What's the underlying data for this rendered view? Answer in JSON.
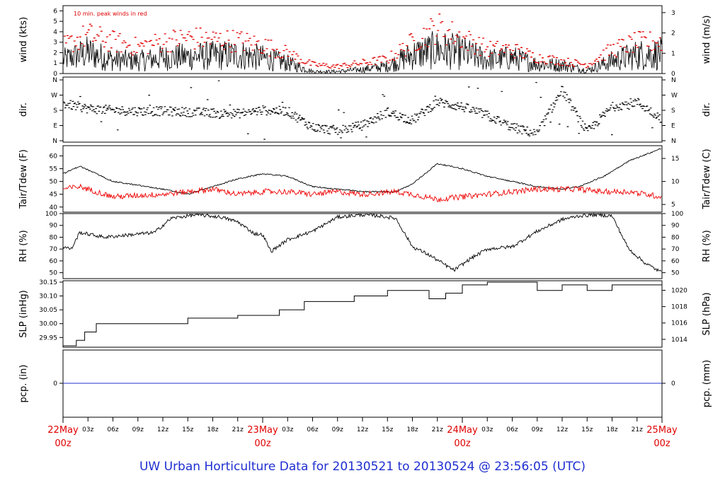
{
  "footer": {
    "title_prefix": "UW Urban Horticulture Data for",
    "start": "20130521",
    "sep": "to",
    "end": "20130524 @ 23:56:05",
    "tz": "(UTC)"
  },
  "colors": {
    "axis": "#000000",
    "series": "#000000",
    "peak": "#e00000",
    "dew": "#ee0000",
    "precip": "#2030d0",
    "day": "#e00000",
    "footer": "#1f2fd0"
  },
  "chart_data": [
    {
      "type": "line",
      "panel": "wind",
      "ylabel_left": "wind (kts)",
      "ylabel_right": "wind (m/s)",
      "annotation": "10 min. peak winds in red",
      "ylim": [
        0,
        6.5
      ],
      "yticks_left": [
        "0",
        "1",
        "2",
        "3",
        "4",
        "5",
        "6"
      ],
      "yticks_right": [
        "0",
        "1",
        "2",
        "3"
      ],
      "series": [
        {
          "name": "wind",
          "x_hours": [
            0,
            3,
            6,
            9,
            12,
            15,
            18,
            21,
            24,
            27,
            30,
            33,
            36,
            39,
            42,
            45,
            48,
            51,
            54,
            57,
            60,
            63,
            66,
            69,
            72
          ],
          "values": [
            1.3,
            2.0,
            1.3,
            1.2,
            1.5,
            1.6,
            1.7,
            1.8,
            1.5,
            1.0,
            0.2,
            0.2,
            0.4,
            0.7,
            1.8,
            2.3,
            2.0,
            1.3,
            1.5,
            0.9,
            0.8,
            0.3,
            1.2,
            1.8,
            1.9
          ]
        },
        {
          "name": "peak",
          "x_hours": [
            0,
            3,
            6,
            9,
            12,
            15,
            18,
            21,
            24,
            27,
            30,
            33,
            36,
            39,
            42,
            45,
            48,
            51,
            54,
            57,
            60,
            63,
            66,
            69,
            72
          ],
          "values": [
            3.1,
            4.3,
            3.6,
            3.0,
            3.6,
            4.0,
            3.8,
            3.7,
            3.2,
            2.3,
            1.0,
            0.8,
            1.2,
            1.6,
            3.5,
            5.2,
            4.0,
            2.8,
            2.7,
            1.8,
            1.4,
            1.0,
            2.7,
            3.5,
            3.6
          ]
        }
      ]
    },
    {
      "type": "scatter",
      "panel": "direction",
      "ylabel_left": "dir.",
      "ylabel_right": "dir.",
      "yticks": [
        "N",
        "W",
        "S",
        "E",
        "N"
      ],
      "series": [
        {
          "name": "dir",
          "x_hours": [
            0,
            3,
            6,
            9,
            12,
            15,
            18,
            21,
            24,
            27,
            30,
            33,
            36,
            39,
            42,
            45,
            48,
            51,
            54,
            57,
            60,
            63,
            66,
            69,
            72
          ],
          "values_deg": [
            220,
            190,
            180,
            175,
            175,
            170,
            165,
            160,
            180,
            175,
            80,
            60,
            90,
            170,
            120,
            230,
            200,
            150,
            80,
            40,
            300,
            50,
            200,
            230,
            130
          ]
        }
      ]
    },
    {
      "type": "line",
      "panel": "temperature",
      "ylabel_left": "Tair/Tdew (F)",
      "ylabel_right": "Tair/Tdew (C)",
      "ylim": [
        38,
        64
      ],
      "yticks_left": [
        "40",
        "45",
        "50",
        "55",
        "60"
      ],
      "yticks_right": [
        "5",
        "10",
        "15"
      ],
      "series": [
        {
          "name": "Tair",
          "x_hours": [
            0,
            2,
            6,
            12,
            15,
            18,
            21,
            24,
            27,
            30,
            33,
            36,
            40,
            42,
            45,
            48,
            51,
            54,
            57,
            60,
            62,
            65,
            68,
            72
          ],
          "values": [
            53,
            56,
            50,
            47,
            45,
            48,
            51,
            53,
            52,
            48,
            47,
            46,
            46,
            49,
            57,
            55,
            52,
            50,
            48,
            47,
            48,
            52,
            58,
            63
          ]
        },
        {
          "name": "Tdew",
          "x_hours": [
            0,
            2,
            6,
            12,
            15,
            18,
            21,
            24,
            27,
            30,
            33,
            36,
            40,
            42,
            45,
            48,
            51,
            54,
            57,
            60,
            62,
            65,
            68,
            72
          ],
          "values": [
            47,
            48,
            44,
            45,
            46,
            47,
            45,
            46,
            46,
            45,
            46,
            45,
            46,
            45,
            43,
            44,
            45,
            46,
            47,
            47,
            47,
            46,
            46,
            44
          ]
        }
      ]
    },
    {
      "type": "line",
      "panel": "humidity",
      "ylabel_left": "RH (%)",
      "ylabel_right": "RH (%)",
      "ylim": [
        45,
        100
      ],
      "yticks_left": [
        "50",
        "60",
        "70",
        "80",
        "90",
        "100"
      ],
      "yticks_right": [
        "50",
        "60",
        "70",
        "80",
        "90",
        "100"
      ],
      "series": [
        {
          "name": "RH",
          "x_hours": [
            0,
            1,
            2,
            5,
            8,
            11,
            13,
            16,
            19,
            21,
            23,
            24,
            25,
            27,
            30,
            33,
            36,
            38,
            39,
            40,
            42,
            44,
            47,
            49,
            51,
            54,
            57,
            60,
            62,
            64,
            66,
            68,
            70,
            72
          ],
          "values": [
            72,
            70,
            84,
            80,
            82,
            84,
            96,
            99,
            97,
            93,
            83,
            82,
            68,
            78,
            85,
            97,
            99,
            98,
            97,
            96,
            72,
            65,
            52,
            62,
            70,
            72,
            85,
            95,
            98,
            99,
            98,
            70,
            58,
            50
          ]
        }
      ]
    },
    {
      "type": "line",
      "panel": "pressure",
      "ylabel_left": "SLP (inHg)",
      "ylabel_right": "SLP (hPa)",
      "ylim": [
        29.915,
        30.155
      ],
      "yticks_left": [
        "29.95",
        "30.00",
        "30.05",
        "30.10",
        "30.15"
      ],
      "yticks_right": [
        "1014",
        "1016",
        "1018",
        "1020"
      ],
      "series": [
        {
          "name": "SLP",
          "x_hours": [
            0,
            1.6,
            2.6,
            4,
            10.5,
            15,
            21,
            26,
            29,
            35,
            39,
            44,
            46,
            48,
            51,
            57,
            60,
            63,
            66,
            72
          ],
          "values": [
            29.92,
            29.94,
            29.97,
            30.0,
            30.0,
            30.02,
            30.03,
            30.05,
            30.08,
            30.1,
            30.12,
            30.09,
            30.11,
            30.14,
            30.15,
            30.12,
            30.14,
            30.12,
            30.14,
            30.12
          ]
        }
      ]
    },
    {
      "type": "line",
      "panel": "precip",
      "ylabel_left": "pcp. (in)",
      "ylabel_right": "pcp. (mm)",
      "yticks_left": [
        "0"
      ],
      "yticks_right": [
        "0"
      ],
      "series": [
        {
          "name": "pcp",
          "x_hours": [
            0,
            72
          ],
          "values": [
            0,
            0
          ]
        }
      ]
    }
  ],
  "x_axis": {
    "hour_ticks": [
      "03z",
      "06z",
      "09z",
      "12z",
      "15z",
      "18z",
      "21z",
      "03z",
      "06z",
      "09z",
      "12z",
      "15z",
      "18z",
      "21z",
      "03z",
      "06z",
      "09z",
      "12z",
      "15z",
      "18z",
      "21z"
    ],
    "day_labels": [
      {
        "date": "22May",
        "hour": "00z"
      },
      {
        "date": "23May",
        "hour": "00z"
      },
      {
        "date": "24May",
        "hour": "00z"
      },
      {
        "date": "25May",
        "hour": "00z"
      }
    ]
  }
}
